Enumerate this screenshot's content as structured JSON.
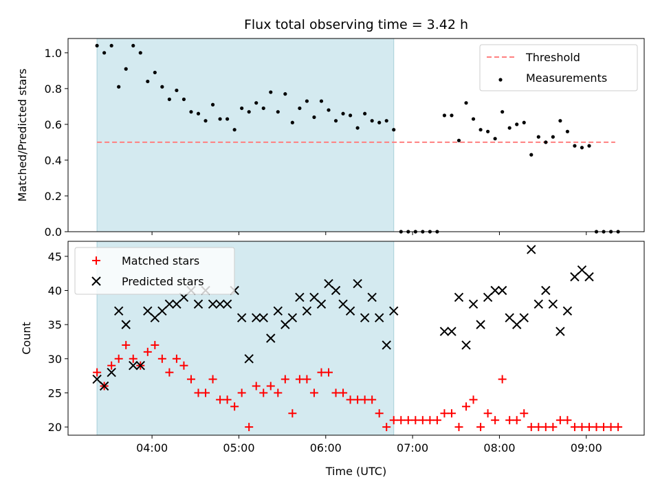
{
  "chart_data": {
    "title": "Flux total observing time = 3.42 h",
    "xlabel": "Time (UTC)",
    "x_unit": "time of day (HH:MM, UTC)",
    "x_ticks": [
      "04:00",
      "05:00",
      "06:00",
      "07:00",
      "08:00",
      "09:00"
    ],
    "xlim": [
      "03:02",
      "09:40"
    ],
    "shaded_span": {
      "start": "03:22",
      "end": "06:47",
      "color": "#add8e6"
    },
    "colors": {
      "threshold": "#ff7f7f",
      "measurements": "#000000",
      "matched": "#ff0000",
      "predicted": "#000000",
      "shade": "#d4eaf0"
    },
    "panels": [
      {
        "type": "scatter",
        "ylabel": "Matched/Predicted stars",
        "ylim": [
          0,
          1.08
        ],
        "y_ticks": [
          "0.0",
          "0.2",
          "0.4",
          "0.6",
          "0.8",
          "1.0"
        ],
        "legend_position": "top-right",
        "series": [
          {
            "name": "Threshold",
            "kind": "dashed-line",
            "x": [
              "03:22",
              "09:20"
            ],
            "y": [
              0.5,
              0.5
            ]
          },
          {
            "name": "Measurements",
            "kind": "dot",
            "x": [
              "03:22",
              "03:27",
              "03:32",
              "03:37",
              "03:42",
              "03:47",
              "03:52",
              "03:57",
              "04:02",
              "04:07",
              "04:12",
              "04:17",
              "04:22",
              "04:27",
              "04:32",
              "04:37",
              "04:42",
              "04:47",
              "04:52",
              "04:57",
              "05:02",
              "05:07",
              "05:12",
              "05:17",
              "05:22",
              "05:27",
              "05:32",
              "05:37",
              "05:42",
              "05:47",
              "05:52",
              "05:57",
              "06:02",
              "06:07",
              "06:12",
              "06:17",
              "06:22",
              "06:27",
              "06:32",
              "06:37",
              "06:42",
              "06:47",
              "06:52",
              "06:57",
              "07:02",
              "07:07",
              "07:12",
              "07:17",
              "07:22",
              "07:27",
              "07:32",
              "07:37",
              "07:42",
              "07:47",
              "07:52",
              "07:57",
              "08:02",
              "08:07",
              "08:12",
              "08:17",
              "08:22",
              "08:27",
              "08:32",
              "08:37",
              "08:42",
              "08:47",
              "08:52",
              "08:57",
              "09:02",
              "09:07",
              "09:12",
              "09:17",
              "09:22"
            ],
            "y": [
              1.04,
              1.0,
              1.04,
              0.81,
              0.91,
              1.04,
              1.0,
              0.84,
              0.89,
              0.81,
              0.74,
              0.79,
              0.74,
              0.67,
              0.66,
              0.62,
              0.71,
              0.63,
              0.63,
              0.57,
              0.69,
              0.67,
              0.72,
              0.69,
              0.78,
              0.67,
              0.77,
              0.61,
              0.69,
              0.73,
              0.64,
              0.73,
              0.68,
              0.62,
              0.66,
              0.65,
              0.58,
              0.66,
              0.62,
              0.61,
              0.62,
              0.57,
              0,
              0,
              0,
              0,
              0,
              0,
              0.65,
              0.65,
              0.51,
              0.72,
              0.63,
              0.57,
              0.56,
              0.52,
              0.67,
              0.58,
              0.6,
              0.61,
              0.43,
              0.53,
              0.5,
              0.53,
              0.62,
              0.56,
              0.48,
              0.47,
              0.48,
              0,
              0,
              0,
              0
            ]
          }
        ]
      },
      {
        "type": "scatter",
        "ylabel": "Count",
        "ylim": [
          18.8,
          47.2
        ],
        "y_ticks": [
          "20",
          "25",
          "30",
          "35",
          "40",
          "45"
        ],
        "legend_position": "top-left",
        "series": [
          {
            "name": "Matched stars",
            "kind": "plus",
            "x": [
              "03:22",
              "03:27",
              "03:32",
              "03:37",
              "03:42",
              "03:47",
              "03:52",
              "03:57",
              "04:02",
              "04:07",
              "04:12",
              "04:17",
              "04:22",
              "04:27",
              "04:32",
              "04:37",
              "04:42",
              "04:47",
              "04:52",
              "04:57",
              "05:02",
              "05:07",
              "05:12",
              "05:17",
              "05:22",
              "05:27",
              "05:32",
              "05:37",
              "05:42",
              "05:47",
              "05:52",
              "05:57",
              "06:02",
              "06:07",
              "06:12",
              "06:17",
              "06:22",
              "06:27",
              "06:32",
              "06:37",
              "06:42",
              "06:47",
              "06:52",
              "06:57",
              "07:02",
              "07:07",
              "07:12",
              "07:17",
              "07:22",
              "07:27",
              "07:32",
              "07:37",
              "07:42",
              "07:47",
              "07:52",
              "07:57",
              "08:02",
              "08:07",
              "08:12",
              "08:17",
              "08:22",
              "08:27",
              "08:32",
              "08:37",
              "08:42",
              "08:47",
              "08:52",
              "08:57",
              "09:02",
              "09:07",
              "09:12",
              "09:17",
              "09:22"
            ],
            "y": [
              28,
              26,
              29,
              30,
              32,
              30,
              29,
              31,
              32,
              30,
              28,
              30,
              29,
              27,
              25,
              25,
              27,
              24,
              24,
              23,
              25,
              20,
              26,
              25,
              26,
              25,
              27,
              22,
              27,
              27,
              25,
              28,
              28,
              25,
              25,
              24,
              24,
              24,
              24,
              22,
              20,
              21,
              21,
              21,
              21,
              21,
              21,
              21,
              22,
              22,
              20,
              23,
              24,
              20,
              22,
              21,
              27,
              21,
              21,
              22,
              20,
              20,
              20,
              20,
              21,
              21,
              20,
              20,
              20,
              20,
              20,
              20,
              20
            ]
          },
          {
            "name": "Predicted stars",
            "kind": "x",
            "x": [
              "03:22",
              "03:27",
              "03:32",
              "03:37",
              "03:42",
              "03:47",
              "03:52",
              "03:57",
              "04:02",
              "04:07",
              "04:12",
              "04:17",
              "04:22",
              "04:27",
              "04:32",
              "04:37",
              "04:42",
              "04:47",
              "04:52",
              "04:57",
              "05:02",
              "05:07",
              "05:12",
              "05:17",
              "05:22",
              "05:27",
              "05:32",
              "05:37",
              "05:42",
              "05:47",
              "05:52",
              "05:57",
              "06:02",
              "06:07",
              "06:12",
              "06:17",
              "06:22",
              "06:27",
              "06:32",
              "06:37",
              "06:42",
              "06:47",
              "07:22",
              "07:27",
              "07:32",
              "07:37",
              "07:42",
              "07:47",
              "07:52",
              "07:57",
              "08:02",
              "08:07",
              "08:12",
              "08:17",
              "08:22",
              "08:27",
              "08:32",
              "08:37",
              "08:42",
              "08:47",
              "08:52",
              "08:57",
              "09:02"
            ],
            "y": [
              27,
              26,
              28,
              37,
              35,
              29,
              29,
              37,
              36,
              37,
              38,
              38,
              39,
              40,
              38,
              40,
              38,
              38,
              38,
              40,
              36,
              30,
              36,
              36,
              33,
              37,
              35,
              36,
              39,
              37,
              39,
              38,
              41,
              40,
              38,
              37,
              41,
              36,
              39,
              36,
              32,
              37,
              34,
              34,
              39,
              32,
              38,
              35,
              39,
              40,
              40,
              36,
              35,
              36,
              46,
              38,
              40,
              38,
              34,
              37,
              42,
              43,
              42
            ]
          }
        ]
      }
    ]
  }
}
